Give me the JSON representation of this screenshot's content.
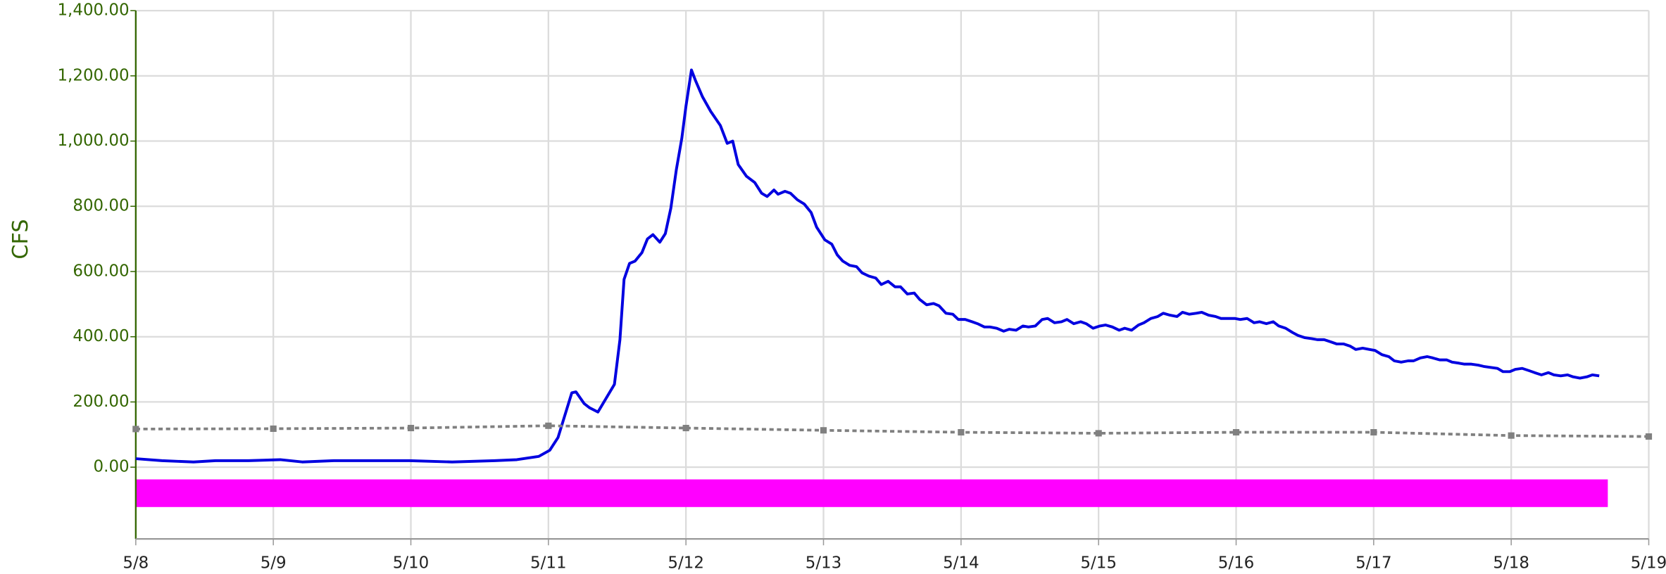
{
  "chart_data": {
    "type": "line",
    "ylabel": "CFS",
    "xlim": [
      0,
      11
    ],
    "xticks": [
      {
        "value": 0,
        "label": "5/8"
      },
      {
        "value": 1,
        "label": "5/9"
      },
      {
        "value": 2,
        "label": "5/10"
      },
      {
        "value": 3,
        "label": "5/11"
      },
      {
        "value": 4,
        "label": "5/12"
      },
      {
        "value": 5,
        "label": "5/13"
      },
      {
        "value": 6,
        "label": "5/14"
      },
      {
        "value": 7,
        "label": "5/15"
      },
      {
        "value": 8,
        "label": "5/16"
      },
      {
        "value": 9,
        "label": "5/17"
      },
      {
        "value": 10,
        "label": "5/18"
      },
      {
        "value": 11,
        "label": "5/19"
      }
    ],
    "ylim": [
      -220,
      1400
    ],
    "yticks": [
      {
        "value": 0,
        "label": "0.00"
      },
      {
        "value": 200,
        "label": "200.00"
      },
      {
        "value": 400,
        "label": "400.00"
      },
      {
        "value": 600,
        "label": "600.00"
      },
      {
        "value": 800,
        "label": "800.00"
      },
      {
        "value": 1000,
        "label": "1,000.00"
      },
      {
        "value": 1200,
        "label": "1,200.00"
      },
      {
        "value": 1400,
        "label": "1,400.00"
      }
    ],
    "grid": true,
    "series": [
      {
        "color": "#0000e0",
        "style": "solid",
        "x": [
          0,
          0.19,
          0.42,
          0.58,
          0.82,
          1.05,
          1.21,
          1.44,
          1.76,
          1.99,
          2.3,
          2.61,
          2.77,
          2.93,
          3.01,
          3.07,
          3.17,
          3.2,
          3.26,
          3.3,
          3.36,
          3.48,
          3.52,
          3.55,
          3.59,
          3.63,
          3.68,
          3.72,
          3.76,
          3.81,
          3.85,
          3.89,
          3.93,
          3.97,
          4.0,
          4.04,
          4.07,
          4.12,
          4.18,
          4.25,
          4.3,
          4.34,
          4.38,
          4.44,
          4.5,
          4.55,
          4.59,
          4.64,
          4.67,
          4.72,
          4.76,
          4.81,
          4.86,
          4.91,
          4.95,
          5.01,
          5.06,
          5.1,
          5.14,
          5.19,
          5.24,
          5.28,
          5.33,
          5.38,
          5.42,
          5.47,
          5.52,
          5.56,
          5.61,
          5.66,
          5.7,
          5.75,
          5.8,
          5.84,
          5.89,
          5.94,
          5.98,
          6.03,
          6.08,
          6.12,
          6.17,
          6.21,
          6.26,
          6.31,
          6.35,
          6.4,
          6.45,
          6.49,
          6.54,
          6.59,
          6.63,
          6.68,
          6.73,
          6.77,
          6.82,
          6.87,
          6.91,
          6.96,
          7.01,
          7.05,
          7.1,
          7.15,
          7.19,
          7.24,
          7.29,
          7.33,
          7.38,
          7.43,
          7.47,
          7.52,
          7.57,
          7.61,
          7.66,
          7.71,
          7.75,
          7.8,
          7.85,
          7.89,
          7.94,
          7.99,
          8.03,
          8.08,
          8.13,
          8.17,
          8.22,
          8.27,
          8.31,
          8.36,
          8.41,
          8.45,
          8.5,
          8.55,
          8.59,
          8.64,
          8.69,
          8.73,
          8.78,
          8.83,
          8.87,
          8.92,
          8.97,
          9.01,
          9.06,
          9.11,
          9.15,
          9.2,
          9.25,
          9.29,
          9.34,
          9.39,
          9.43,
          9.48,
          9.53,
          9.57,
          9.62,
          9.66,
          9.71,
          9.76,
          9.8,
          9.85,
          9.9,
          9.94,
          9.99,
          10.03,
          10.08,
          10.13,
          10.17,
          10.22,
          10.27,
          10.31,
          10.36,
          10.41,
          10.45,
          10.5,
          10.55,
          10.59,
          10.64
        ],
        "values": [
          26,
          20,
          16,
          20,
          20,
          23,
          16,
          20,
          20,
          20,
          16,
          20,
          23,
          33,
          52,
          91,
          228,
          231,
          195,
          182,
          169,
          254,
          391,
          576,
          625,
          632,
          658,
          700,
          713,
          690,
          716,
          794,
          912,
          1009,
          1107,
          1218,
          1185,
          1136,
          1091,
          1048,
          993,
          1000,
          928,
          892,
          873,
          840,
          830,
          850,
          837,
          846,
          840,
          820,
          807,
          781,
          736,
          697,
          684,
          651,
          632,
          619,
          615,
          596,
          586,
          580,
          560,
          570,
          553,
          553,
          531,
          534,
          514,
          498,
          502,
          495,
          472,
          469,
          453,
          453,
          446,
          440,
          430,
          430,
          426,
          417,
          423,
          420,
          433,
          430,
          433,
          453,
          456,
          443,
          446,
          453,
          440,
          446,
          440,
          426,
          433,
          436,
          430,
          420,
          426,
          420,
          436,
          443,
          456,
          462,
          472,
          466,
          462,
          475,
          469,
          472,
          475,
          466,
          462,
          456,
          456,
          456,
          453,
          456,
          443,
          446,
          440,
          446,
          433,
          426,
          413,
          404,
          397,
          394,
          391,
          391,
          384,
          378,
          378,
          371,
          361,
          365,
          361,
          358,
          345,
          339,
          326,
          322,
          326,
          326,
          335,
          339,
          335,
          329,
          329,
          322,
          319,
          316,
          316,
          313,
          309,
          306,
          303,
          293,
          293,
          300,
          303,
          296,
          290,
          283,
          290,
          283,
          280,
          283,
          277,
          273,
          277,
          283,
          280
        ]
      },
      {
        "color": "#808080",
        "style": "dotted",
        "x": [
          0,
          1,
          2,
          3,
          4,
          5,
          6,
          7,
          8,
          9,
          10,
          11
        ],
        "values": [
          117,
          118,
          120,
          127,
          120,
          113,
          107,
          104,
          107,
          107,
          97,
          94
        ]
      }
    ]
  }
}
